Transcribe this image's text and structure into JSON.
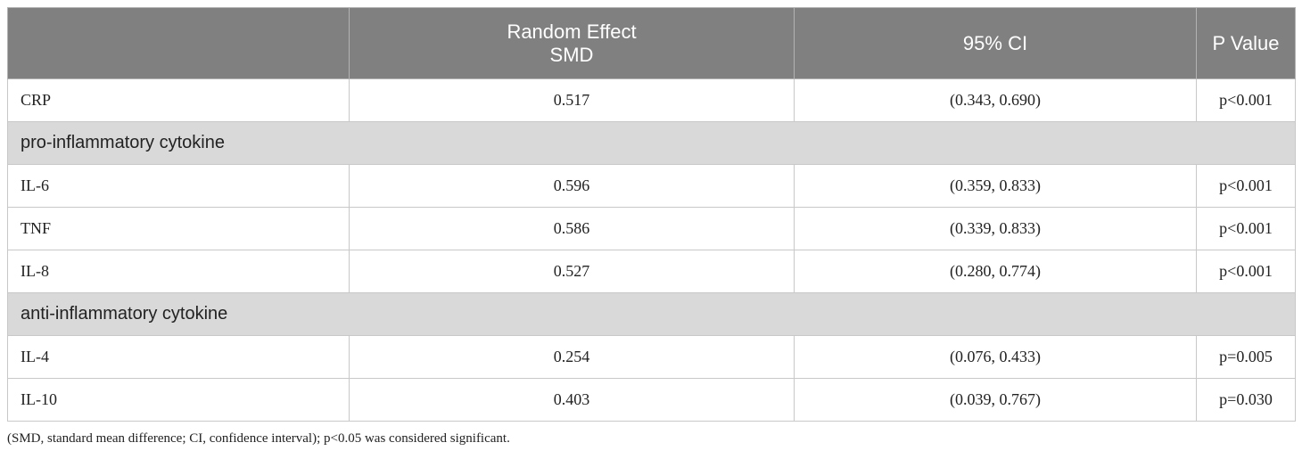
{
  "table": {
    "headers": {
      "col1": "",
      "col2_line1": "Random Effect",
      "col2_line2": "SMD",
      "col3": "95% CI",
      "col4": "P Value"
    },
    "rows": [
      {
        "type": "data",
        "label": "CRP",
        "smd": "0.517",
        "ci": "(0.343, 0.690)",
        "p": "p<0.001"
      },
      {
        "type": "group",
        "label": "pro-inflammatory cytokine"
      },
      {
        "type": "data",
        "label": "IL-6",
        "smd": "0.596",
        "ci": "(0.359, 0.833)",
        "p": "p<0.001"
      },
      {
        "type": "data",
        "label": "TNF",
        "smd": "0.586",
        "ci": "(0.339, 0.833)",
        "p": "p<0.001"
      },
      {
        "type": "data",
        "label": "IL-8",
        "smd": "0.527",
        "ci": "(0.280, 0.774)",
        "p": "p<0.001"
      },
      {
        "type": "group",
        "label": "anti-inflammatory cytokine"
      },
      {
        "type": "data",
        "label": "IL-4",
        "smd": "0.254",
        "ci": "(0.076, 0.433)",
        "p": "p=0.005"
      },
      {
        "type": "data",
        "label": "IL-10",
        "smd": "0.403",
        "ci": "(0.039, 0.767)",
        "p": "p=0.030"
      }
    ],
    "colors": {
      "header_bg": "#808080",
      "group_bg": "#d9d9d9"
    }
  },
  "footnote": "(SMD, standard mean difference; CI, confidence interval); p<0.05 was considered significant."
}
